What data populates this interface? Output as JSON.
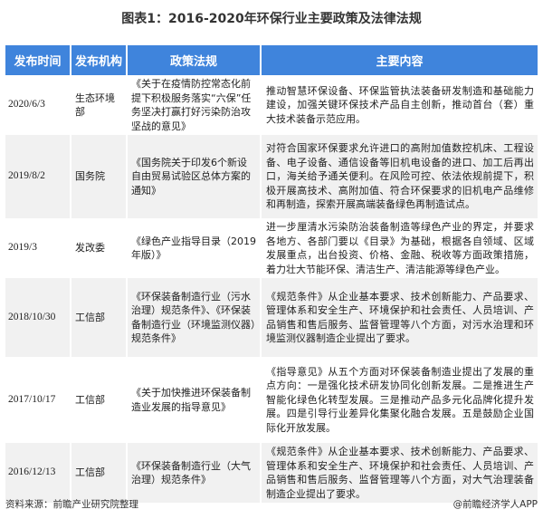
{
  "title": "图表1：2016-2020年环保行业主要政策及法律法规",
  "columns": [
    "发布时间",
    "发布机构",
    "政策法规",
    "主要内容"
  ],
  "rows": [
    {
      "date": "2020/6/3",
      "agency": "生态环境部",
      "policy": "《关于在疫情防控常态化前提下积极服务落实“六保”任务坚决打赢打好污染防治攻坚战的意见》",
      "content": "推动智慧环保设备、环保监管执法装备研发制造和基础能力建设，加强关键环保技术产品自主创新，推动首台（套）重大技术装备示范应用。"
    },
    {
      "date": "2019/8/2",
      "agency": "国务院",
      "policy": "《国务院关于印发6个新设自由贸易试验区总体方案的通知》",
      "content": "对符合国家环保要求允许进口的高附加值数控机床、工程设备、电子设备、通信设备等旧机电设备的进口、加工后再出口，海关给予通关便利。在风险可控、依法依规前提下，积极开展高技术、高附加值、符合环保要求的旧机电产品维修和再制造，探索开展高端装备绿色再制造试点。"
    },
    {
      "date": "2019/3",
      "agency": "发改委",
      "policy": "《绿色产业指导目录（2019年版）》",
      "content": "进一步厘清水污染防治装备制造等绿色产业的界定，并要求各地方、各部门要以《目录》为基础，根据各自领域、区域发展重点，出台投资、价格、金融、税收等方面政策措施，着力壮大节能环保、清洁生产、清洁能源等绿色产业。"
    },
    {
      "date": "2018/10/30",
      "agency": "工信部",
      "policy": "《环保装备制造行业（污水治理）规范条件》、《环保装备制造行业（环境监测仪器）规范条件》",
      "content": "《规范条件》从企业基本要求、技术创新能力、产品要求、管理体系和安全生产、环境保护和社会责任、人员培训、产品销售和售后服务、监督管理等八个方面，对污水治理和环境监测仪器制造企业提出了要求。"
    },
    {
      "date": "2017/10/17",
      "agency": "工信部",
      "policy": "《关于加快推进环保装备制造业发展的指导意见》",
      "content": "《指导意见》从五个方面对环保装备制造业提出了发展的重点方向：一是强化技术研发协同化创新发展。二是推进生产智能化绿色化转型发展。三是推动产品多元化品牌化提升发展。四是引导行业差异化集聚化融合发展。五是鼓励企业国际化开放发展。"
    },
    {
      "date": "2016/12/13",
      "agency": "工信部",
      "policy": "《环保装备制造行业（大气治理）规范条件》",
      "content": "《规范条件》从企业基本要求、技术创新能力、产品要求、管理体系和安全生产、环境保护和社会责任、人员培训、产品销售和售后服务、监督管理等八个方面，对大气治理装备制造企业提出了要求。"
    }
  ],
  "footer": {
    "source": "资料来源：前瞻产业研究院整理",
    "credit": "@前瞻经济学人APP"
  },
  "colors": {
    "header": "#3f84dc",
    "stripe": "#f1f1f1"
  }
}
